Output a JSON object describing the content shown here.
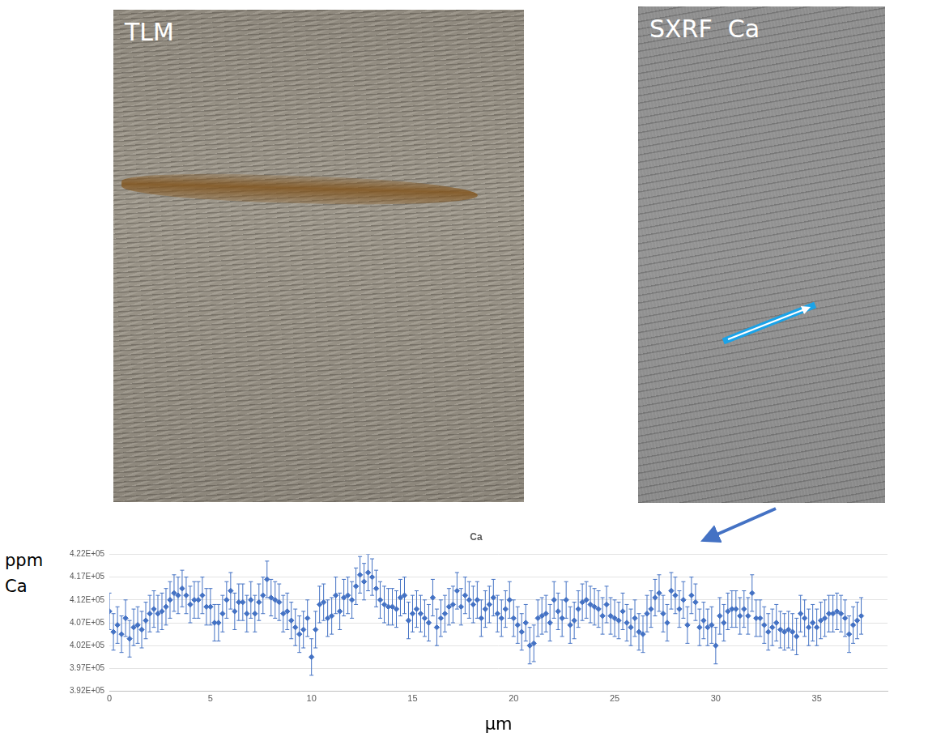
{
  "panels": [
    {
      "label": "TLM"
    },
    {
      "label": "SXRF  Ca"
    }
  ],
  "chart_data": {
    "type": "scatter",
    "title": "Ca",
    "ylabel": [
      "ppm",
      "Ca"
    ],
    "xlabel": "µm",
    "color": "#4472c4",
    "marker": "diamond",
    "grid": "y",
    "xlim": [
      0,
      38.5
    ],
    "xticks": [
      0,
      5,
      10,
      15,
      20,
      25,
      30,
      35
    ],
    "ylim": [
      392000,
      422000
    ],
    "yticks": [
      {
        "value": 392000,
        "label": "3.92E+05"
      },
      {
        "value": 397000,
        "label": "3.97E+05"
      },
      {
        "value": 402000,
        "label": "4.02E+05"
      },
      {
        "value": 407000,
        "label": "4.07E+05"
      },
      {
        "value": 412000,
        "label": "4.12E+05"
      },
      {
        "value": 417000,
        "label": "4.17E+05"
      },
      {
        "value": 422000,
        "label": "4.22E+05"
      }
    ],
    "x": [
      0,
      0.2,
      0.4,
      0.6,
      0.8,
      1,
      1.2,
      1.4,
      1.6,
      1.8,
      2,
      2.2,
      2.4,
      2.6,
      2.8,
      3,
      3.2,
      3.4,
      3.6,
      3.8,
      4,
      4.2,
      4.4,
      4.6,
      4.8,
      5,
      5.2,
      5.4,
      5.6,
      5.8,
      6,
      6.2,
      6.4,
      6.6,
      6.8,
      7,
      7.2,
      7.4,
      7.6,
      7.8,
      8,
      8.2,
      8.4,
      8.6,
      8.8,
      9,
      9.2,
      9.4,
      9.6,
      9.8,
      10,
      10.2,
      10.4,
      10.6,
      10.8,
      11,
      11.2,
      11.4,
      11.6,
      11.8,
      12,
      12.2,
      12.4,
      12.6,
      12.8,
      13,
      13.2,
      13.4,
      13.6,
      13.8,
      14,
      14.2,
      14.4,
      14.6,
      14.8,
      15,
      15.2,
      15.4,
      15.6,
      15.8,
      16,
      16.2,
      16.4,
      16.6,
      16.8,
      17,
      17.2,
      17.4,
      17.6,
      17.8,
      18,
      18.2,
      18.4,
      18.6,
      18.8,
      19,
      19.2,
      19.4,
      19.6,
      19.8,
      20,
      20.2,
      20.4,
      20.6,
      20.8,
      21,
      21.2,
      21.4,
      21.6,
      21.8,
      22,
      22.2,
      22.4,
      22.6,
      22.8,
      23,
      23.2,
      23.4,
      23.6,
      23.8,
      24,
      24.2,
      24.4,
      24.6,
      24.8,
      25,
      25.2,
      25.4,
      25.6,
      25.8,
      26,
      26.2,
      26.4,
      26.6,
      26.8,
      27,
      27.2,
      27.4,
      27.6,
      27.8,
      28,
      28.2,
      28.4,
      28.6,
      28.8,
      29,
      29.2,
      29.4,
      29.6,
      29.8,
      30,
      30.2,
      30.4,
      30.6,
      30.8,
      31,
      31.2,
      31.4,
      31.6,
      31.8,
      32,
      32.2,
      32.4,
      32.6,
      32.8,
      33,
      33.2,
      33.4,
      33.6,
      33.8,
      34,
      34.2,
      34.4,
      34.6,
      34.8,
      35,
      35.2,
      35.4,
      35.6,
      35.8,
      36,
      36.2,
      36.4,
      36.6,
      36.8,
      37,
      37.2
    ],
    "values": [
      409500,
      405000,
      406500,
      404500,
      408000,
      403500,
      406000,
      406500,
      405500,
      407500,
      409000,
      410000,
      409000,
      409500,
      410500,
      412000,
      413500,
      413000,
      414500,
      413000,
      411000,
      412000,
      412000,
      413000,
      410500,
      410500,
      407000,
      407000,
      409000,
      412000,
      414000,
      409500,
      411500,
      411500,
      409000,
      412000,
      409000,
      411500,
      413000,
      416500,
      412500,
      412000,
      411500,
      409000,
      409500,
      407500,
      406000,
      404500,
      405500,
      408000,
      399500,
      405500,
      411000,
      411500,
      408000,
      408500,
      413000,
      409500,
      412500,
      413000,
      412000,
      415000,
      417500,
      416000,
      418000,
      417000,
      414500,
      412000,
      411000,
      410500,
      410500,
      410000,
      412500,
      413000,
      407500,
      409000,
      410000,
      409000,
      408000,
      407000,
      412500,
      406000,
      408000,
      409000,
      410500,
      411000,
      414000,
      410500,
      413000,
      412000,
      411000,
      412000,
      408000,
      410000,
      411000,
      412500,
      409000,
      408000,
      410000,
      412000,
      408000,
      406500,
      405000,
      407000,
      402000,
      402500,
      408000,
      408500,
      409000,
      407000,
      412000,
      409500,
      408000,
      412000,
      406500,
      407500,
      410000,
      411500,
      412000,
      411000,
      410500,
      410000,
      408500,
      411000,
      408500,
      408000,
      407500,
      409500,
      407000,
      406000,
      408000,
      405000,
      404500,
      409000,
      410000,
      412500,
      413500,
      409000,
      407000,
      414000,
      413000,
      410000,
      412000,
      406500,
      413000,
      411500,
      406000,
      407500,
      406000,
      406500,
      402000,
      408500,
      407000,
      409500,
      410000,
      410000,
      408500,
      410000,
      408500,
      413500,
      408000,
      408000,
      406500,
      405000,
      406000,
      407000,
      405500,
      405000,
      405500,
      405000,
      404000,
      409000,
      408000,
      406000,
      407000,
      406000,
      407500,
      408000,
      409000,
      409000,
      409500,
      409000,
      408000,
      404500,
      406500,
      407500,
      408500
    ],
    "errors": [
      4000,
      4000,
      4000,
      4000,
      4000,
      4000,
      4000,
      4000,
      4000,
      4000,
      4000,
      4000,
      4000,
      4000,
      4000,
      4000,
      4000,
      4000,
      4000,
      4000,
      4000,
      4000,
      4000,
      4000,
      4000,
      4000,
      4000,
      4000,
      4000,
      4000,
      4000,
      4000,
      4000,
      4000,
      4000,
      4000,
      4000,
      4000,
      4000,
      4000,
      4000,
      4000,
      4000,
      4000,
      4000,
      4000,
      4000,
      4000,
      4000,
      4000,
      4000,
      4000,
      4000,
      4000,
      4000,
      4000,
      4000,
      4000,
      4000,
      4000,
      4000,
      4000,
      4000,
      4000,
      4000,
      4000,
      4000,
      4000,
      4000,
      4000,
      4000,
      4000,
      4000,
      4000,
      4000,
      4000,
      4000,
      4000,
      4000,
      4000,
      4000,
      4000,
      4000,
      4000,
      4000,
      4000,
      4000,
      4000,
      4000,
      4000,
      4000,
      4000,
      4000,
      4000,
      4000,
      4000,
      4000,
      4000,
      4000,
      4000,
      4000,
      4000,
      4000,
      4000,
      4000,
      4000,
      4000,
      4000,
      4000,
      4000,
      4000,
      4000,
      4000,
      4000,
      4000,
      4000,
      4000,
      4000,
      4000,
      4000,
      4000,
      4000,
      4000,
      4000,
      4000,
      4000,
      4000,
      4000,
      4000,
      4000,
      4000,
      4000,
      4000,
      4000,
      4000,
      4000,
      4000,
      4000,
      4000,
      4000,
      4000,
      4000,
      4000,
      4000,
      4000,
      4000,
      4000,
      4000,
      4000,
      4000,
      4000,
      4000,
      4000,
      4000,
      4000,
      4000,
      4000,
      4000,
      4000,
      4000,
      4000,
      4000,
      4000,
      4000,
      4000,
      4000,
      4000,
      4000,
      4000,
      4000,
      4000,
      4000,
      4000,
      4000,
      4000,
      4000,
      4000,
      4000,
      4000,
      4000,
      4000,
      4000,
      4000,
      4000,
      4000,
      4000,
      4000
    ]
  }
}
